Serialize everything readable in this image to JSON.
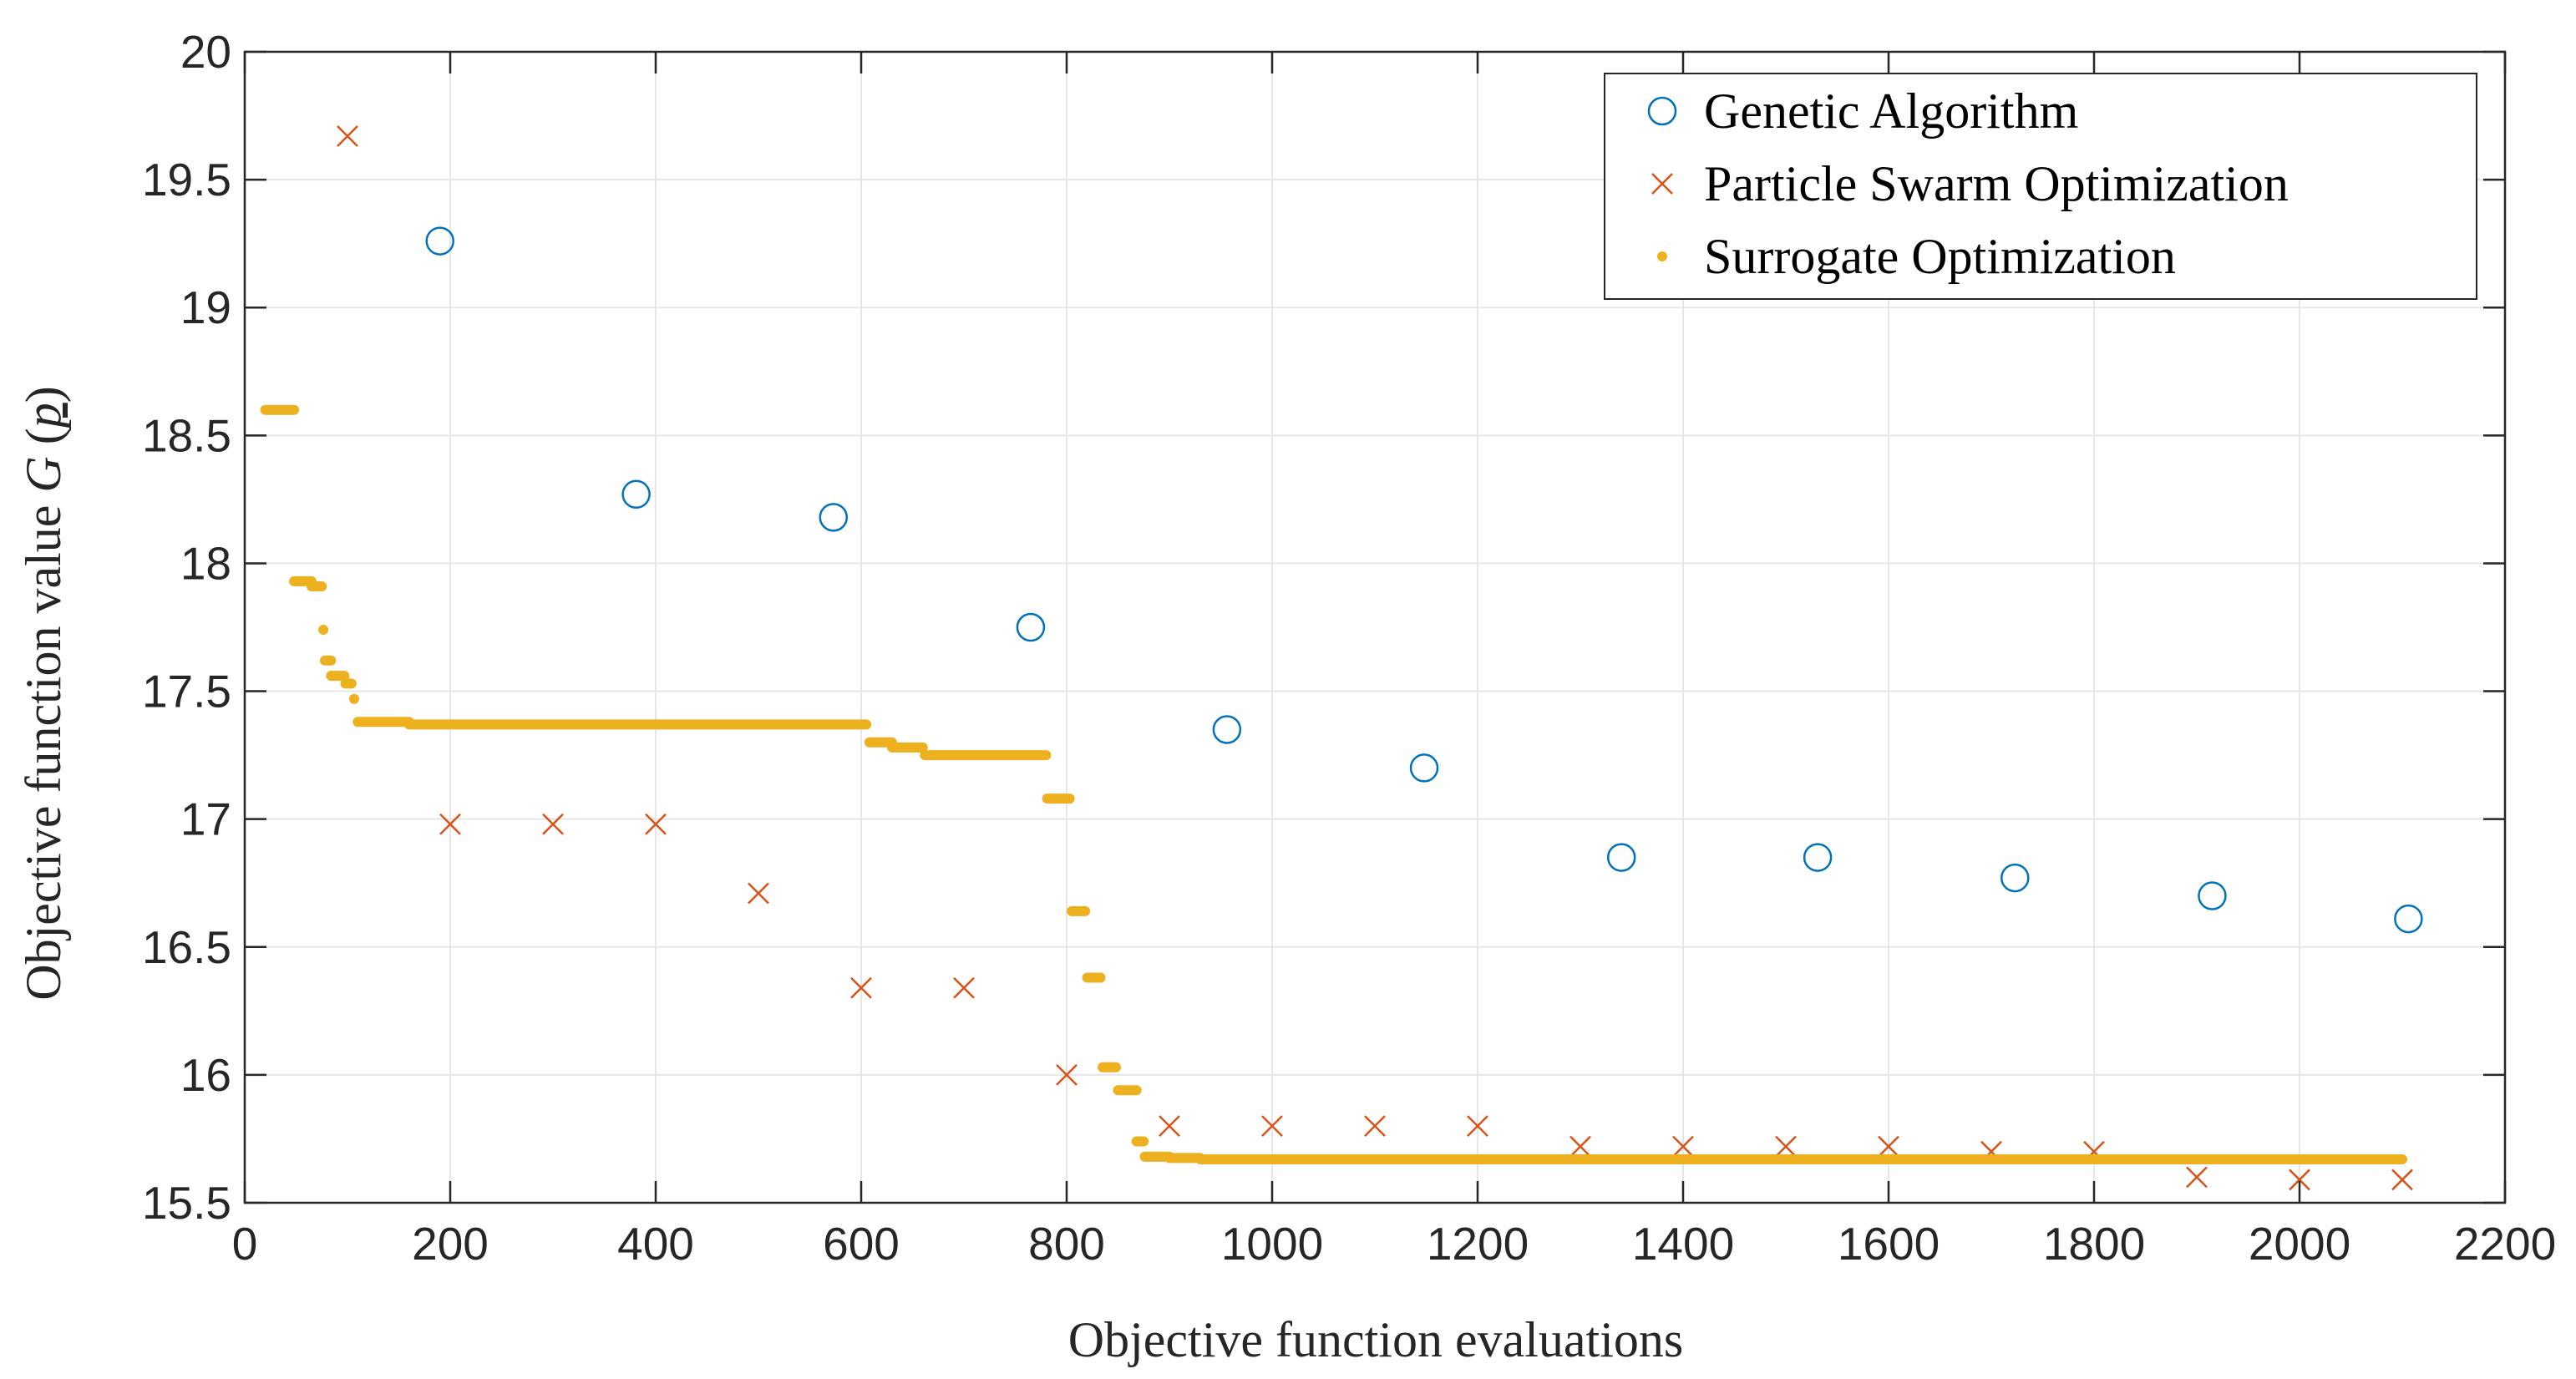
{
  "chart_data": {
    "type": "scatter",
    "xlabel": "Objective function evaluations",
    "ylabel_prefix": "Objective function value ",
    "ylabel_symbol": "G",
    "ylabel_open": "(",
    "ylabel_arg": "p",
    "ylabel_close": ")",
    "xlim": [
      0,
      2200
    ],
    "ylim": [
      15.5,
      20
    ],
    "xticks": [
      0,
      200,
      400,
      600,
      800,
      1000,
      1200,
      1400,
      1600,
      1800,
      2000,
      2200
    ],
    "yticks": [
      15.5,
      16,
      16.5,
      17,
      17.5,
      18,
      18.5,
      19,
      19.5,
      20
    ],
    "xtick_labels": [
      "0",
      "200",
      "400",
      "600",
      "800",
      "1000",
      "1200",
      "1400",
      "1600",
      "1800",
      "2000",
      "2200"
    ],
    "ytick_labels": [
      "15.5",
      "16",
      "16.5",
      "17",
      "17.5",
      "18",
      "18.5",
      "19",
      "19.5",
      "20"
    ],
    "grid": true,
    "legend_position": "top-right",
    "series": [
      {
        "name": "Genetic Algorithm",
        "marker": "circle",
        "color": "#0072BD",
        "x": [
          190,
          381,
          573,
          765,
          956,
          1148,
          1340,
          1531,
          1723,
          1915,
          2106
        ],
        "y": [
          19.26,
          18.27,
          18.18,
          17.75,
          17.35,
          17.2,
          16.85,
          16.85,
          16.77,
          16.7,
          16.61
        ]
      },
      {
        "name": "Particle Swarm Optimization",
        "marker": "x",
        "color": "#D95319",
        "x": [
          100,
          200,
          300,
          400,
          500,
          600,
          700,
          800,
          900,
          1000,
          1100,
          1200,
          1300,
          1400,
          1500,
          1600,
          1700,
          1800,
          1900,
          2000,
          2100
        ],
        "y": [
          19.67,
          16.98,
          16.98,
          16.98,
          16.71,
          16.34,
          16.34,
          16.0,
          15.8,
          15.8,
          15.8,
          15.8,
          15.72,
          15.72,
          15.72,
          15.72,
          15.7,
          15.7,
          15.6,
          15.59,
          15.59
        ]
      },
      {
        "name": "Surrogate Optimization",
        "marker": "dot",
        "color": "#EDB120",
        "segments": [
          {
            "x": [
              20,
              48
            ],
            "y": 18.6
          },
          {
            "x": [
              48,
              65
            ],
            "y": 17.93
          },
          {
            "x": [
              65,
              75
            ],
            "y": 17.91
          },
          {
            "x": [
              76,
              77
            ],
            "y": 17.74
          },
          {
            "x": [
              78,
              84
            ],
            "y": 17.62
          },
          {
            "x": [
              84,
              97
            ],
            "y": 17.56
          },
          {
            "x": [
              98,
              104
            ],
            "y": 17.53
          },
          {
            "x": [
              106,
              107
            ],
            "y": 17.47
          },
          {
            "x": [
              110,
              160
            ],
            "y": 17.38
          },
          {
            "x": [
              160,
              605
            ],
            "y": 17.37
          },
          {
            "x": [
              608,
              630
            ],
            "y": 17.3
          },
          {
            "x": [
              630,
              660
            ],
            "y": 17.28
          },
          {
            "x": [
              662,
              780
            ],
            "y": 17.25
          },
          {
            "x": [
              781,
              803
            ],
            "y": 17.08
          },
          {
            "x": [
              805,
              818
            ],
            "y": 16.64
          },
          {
            "x": [
              820,
              833
            ],
            "y": 16.38
          },
          {
            "x": [
              835,
              848
            ],
            "y": 16.03
          },
          {
            "x": [
              850,
              868
            ],
            "y": 15.94
          },
          {
            "x": [
              868,
              875
            ],
            "y": 15.74
          },
          {
            "x": [
              876,
              900
            ],
            "y": 15.68
          },
          {
            "x": [
              900,
              930
            ],
            "y": 15.675
          },
          {
            "x": [
              930,
              2100
            ],
            "y": 15.67
          }
        ]
      }
    ]
  }
}
